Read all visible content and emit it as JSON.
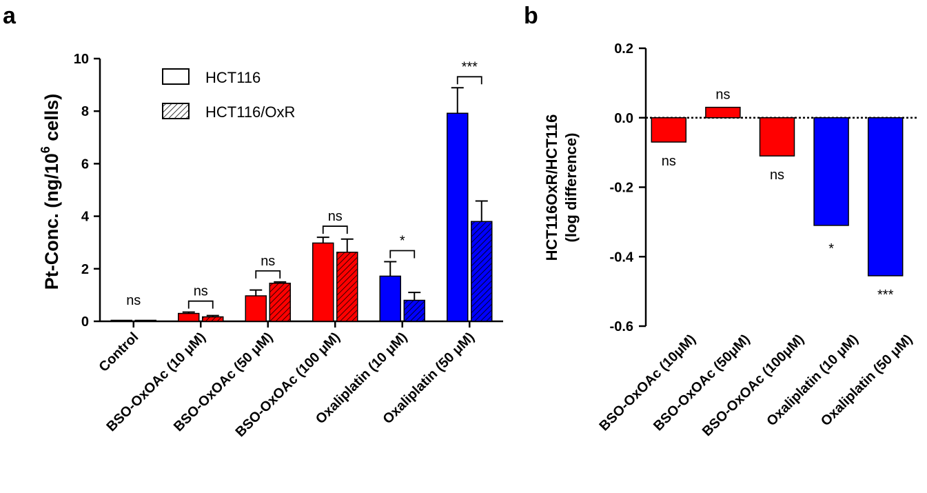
{
  "chart_data": [
    {
      "panel": "a",
      "type": "bar",
      "ylabel_main": "Pt-Conc. (ng/10",
      "ylabel_sup": "6",
      "ylabel_end": " cells)",
      "ylim": [
        0,
        10
      ],
      "yticks": [
        0,
        2,
        4,
        6,
        8,
        10
      ],
      "categories": [
        "Control",
        "BSO-OxOAc (10 μM)",
        "BSO-OxOAc (50 μM)",
        "BSO-OxOAc (100 μM)",
        "Oxaliplatin (10 μM)",
        "Oxaliplatin (50 μM)"
      ],
      "category_colors": [
        "#ff0000",
        "#ff0000",
        "#ff0000",
        "#ff0000",
        "#0000ff",
        "#0000ff"
      ],
      "series": [
        {
          "name": "HCT116",
          "pattern": "solid",
          "values": [
            0.03,
            0.3,
            0.97,
            2.98,
            1.72,
            7.92
          ],
          "errors": [
            0.0,
            0.05,
            0.22,
            0.22,
            0.55,
            0.97
          ]
        },
        {
          "name": "HCT116/OxR",
          "pattern": "hatched",
          "values": [
            0.03,
            0.17,
            1.45,
            2.63,
            0.8,
            3.8
          ],
          "errors": [
            0.0,
            0.05,
            0.05,
            0.5,
            0.3,
            0.78
          ]
        }
      ],
      "significance": [
        "ns",
        "ns",
        "ns",
        "ns",
        "*",
        "***"
      ],
      "legend_placement": "top-center"
    },
    {
      "panel": "b",
      "type": "bar",
      "ylabel_line1": "HCT116OxR/HCT116",
      "ylabel_line2": "(log difference)",
      "ylim": [
        -0.6,
        0.2
      ],
      "yticks": [
        "0.2",
        "0.0",
        "-0.2",
        "-0.4",
        "-0.6"
      ],
      "categories": [
        "BSO-OxOAc (10μM)",
        "BSO-OxOAc (50μM)",
        "BSO-OxOAc (100μM)",
        "Oxaliplatin (10 μM)",
        "Oxaliplatin (50 μM)"
      ],
      "category_colors": [
        "#ff0000",
        "#ff0000",
        "#ff0000",
        "#0000ff",
        "#0000ff"
      ],
      "values": [
        -0.07,
        0.03,
        -0.11,
        -0.31,
        -0.455
      ],
      "significance": [
        "ns",
        "ns",
        "ns",
        "*",
        "***"
      ]
    }
  ]
}
